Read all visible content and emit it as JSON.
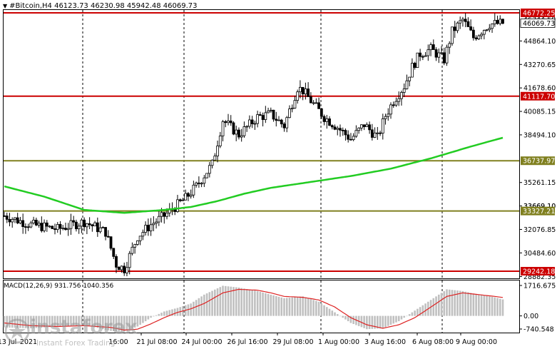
{
  "header": {
    "symbol": "#Bitcoin,H4",
    "open": "46123.73",
    "high": "46230.98",
    "low": "45942.48",
    "close": "46069.73"
  },
  "macd_header": {
    "label": "MACD(12,26,9)",
    "v1": "931.756",
    "v2": "1040.356"
  },
  "logo": {
    "word": "instaforex",
    "sub": "Instant Forex Trading"
  },
  "chart_data": [
    {
      "type": "candlestick",
      "symbol": "#Bitcoin",
      "timeframe": "H4",
      "ylim": [
        28882.35,
        48000
      ],
      "y_ticks": [
        "44864.10",
        "43270.65",
        "41678.60",
        "40085.15",
        "38494.10",
        "35261.15",
        "33669.10",
        "32076.85",
        "30484.60",
        "28882.35"
      ],
      "y_axis_labels_partial": [
        "46344.50",
        "33669.10"
      ],
      "x_ticks": [
        "21 Jul 08:00",
        "24 Jul 00:00",
        "26 Jul 16:00",
        "29 Jul 08:00",
        "1 Aug 00:00",
        "3 Aug 16:00",
        "6 Aug 08:00",
        "9 Aug 00:00"
      ],
      "x_ticks_partial": [
        "13 Jul",
        "2021",
        "16:00"
      ],
      "current_price": "46069.73",
      "levels": [
        {
          "value": "46772.25",
          "color": "#cc0000"
        },
        {
          "value": "41117.70",
          "color": "#cc0000"
        },
        {
          "value": "36737.97",
          "color": "#808020"
        },
        {
          "value": "33327.21",
          "color": "#808020"
        },
        {
          "value": "29242.18",
          "color": "#cc0000"
        }
      ],
      "moving_average": {
        "color": "#22cc22",
        "x_index": [
          0,
          15,
          30,
          45,
          60,
          70,
          80,
          90,
          100,
          115,
          130,
          145,
          160,
          175,
          187
        ],
        "values": [
          35000,
          34300,
          33400,
          33200,
          33400,
          33600,
          34000,
          34500,
          34900,
          35300,
          35700,
          36200,
          36900,
          37700,
          38300
        ]
      },
      "candle_close_path": {
        "x_index": [
          0,
          10,
          20,
          30,
          38,
          42,
          45,
          50,
          55,
          60,
          68,
          72,
          78,
          82,
          88,
          95,
          100,
          105,
          110,
          112,
          115,
          120,
          125,
          130,
          135,
          140,
          143,
          146,
          150,
          153,
          156,
          160,
          165,
          168,
          172,
          176,
          182,
          187
        ],
        "values": [
          33000,
          32400,
          32100,
          32600,
          31900,
          29700,
          29400,
          31600,
          32400,
          33000,
          34200,
          35000,
          36500,
          39500,
          38500,
          39700,
          39900,
          39100,
          41700,
          41500,
          40800,
          39700,
          39000,
          38200,
          39200,
          38300,
          39800,
          40800,
          41800,
          43100,
          44000,
          44300,
          43600,
          45500,
          46300,
          45100,
          46000,
          46070
        ]
      }
    },
    {
      "type": "bar",
      "indicator": "MACD(12,26,9)",
      "ylim": [
        -740.548,
        1716.675
      ],
      "y_ticks": [
        "1716.675",
        "0.00",
        "-740.548"
      ],
      "signal_color": "#dd2222",
      "histogram_color": "#c0c0c0",
      "x_index": [
        0,
        10,
        20,
        30,
        40,
        45,
        50,
        55,
        60,
        65,
        70,
        75,
        82,
        88,
        95,
        100,
        105,
        112,
        118,
        124,
        130,
        136,
        142,
        148,
        154,
        160,
        166,
        172,
        178,
        184,
        187
      ],
      "histogram": [
        -650,
        -700,
        -600,
        -500,
        -850,
        -900,
        -600,
        -100,
        250,
        450,
        700,
        1200,
        1700,
        1600,
        1400,
        1200,
        1000,
        1100,
        800,
        200,
        -400,
        -750,
        -700,
        -300,
        300,
        900,
        1500,
        1400,
        1200,
        1050,
        930
      ],
      "signal": [
        -400,
        -550,
        -600,
        -550,
        -650,
        -800,
        -750,
        -450,
        -100,
        200,
        400,
        700,
        1300,
        1500,
        1450,
        1300,
        1100,
        1050,
        900,
        500,
        -100,
        -500,
        -700,
        -500,
        -100,
        500,
        1100,
        1300,
        1200,
        1100,
        1040
      ]
    }
  ]
}
